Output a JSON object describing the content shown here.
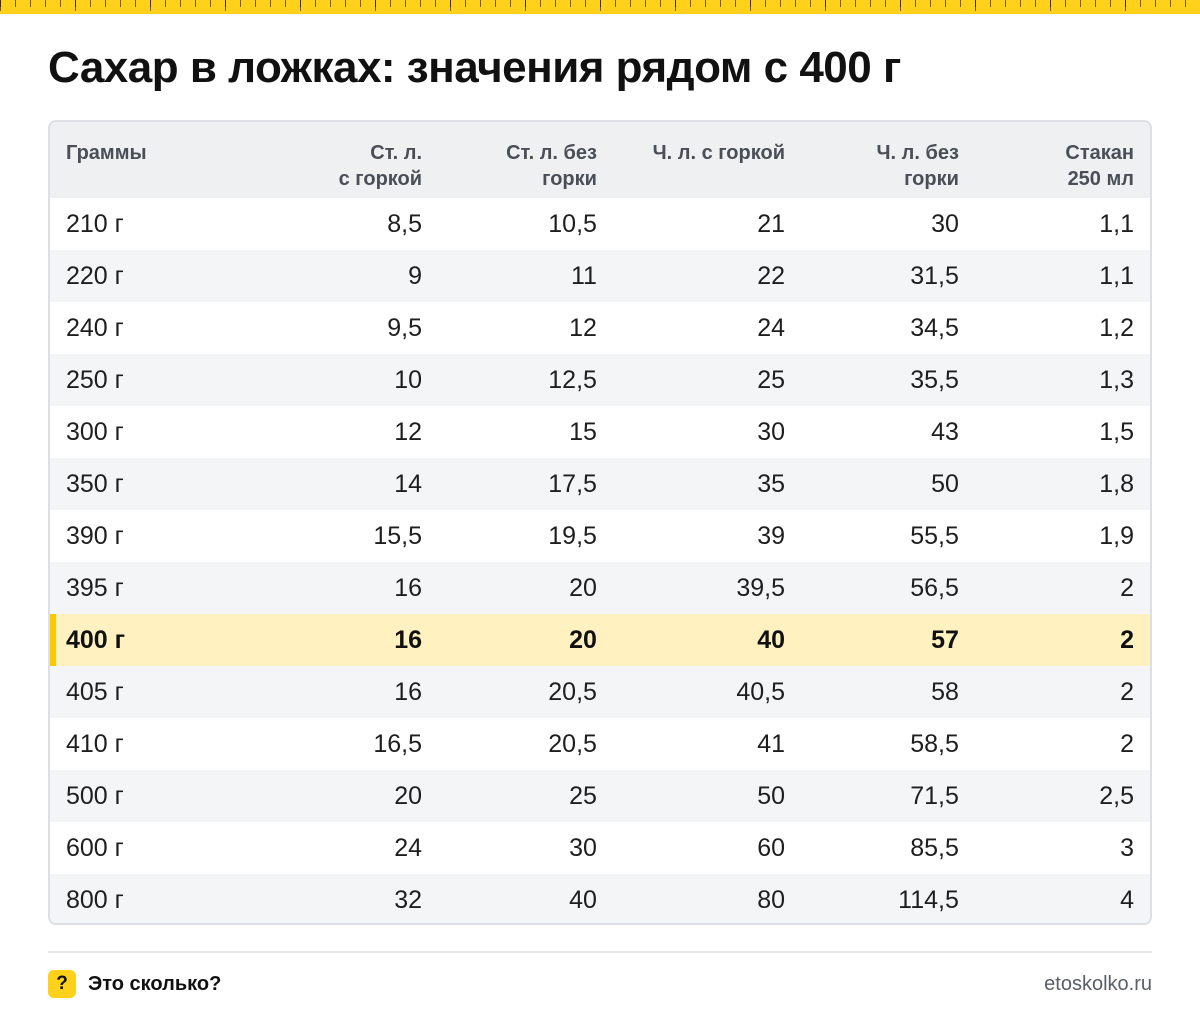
{
  "colors": {
    "accent": "#ffd11a",
    "highlight_row": "#fff2c0",
    "highlight_bar": "#ffc700",
    "header_bg": "#eef0f2"
  },
  "title": "Сахар в ложках: значения рядом с 400 г",
  "table": {
    "headers": [
      [
        "Граммы"
      ],
      [
        "Ст. л.",
        "с горкой"
      ],
      [
        "Ст. л. без",
        "горки"
      ],
      [
        "Ч. л. с горкой"
      ],
      [
        "Ч. л. без",
        "горки"
      ],
      [
        "Стакан",
        "250 мл"
      ]
    ],
    "highlight_index": 8,
    "rows": [
      [
        "210 г",
        "8,5",
        "10,5",
        "21",
        "30",
        "1,1"
      ],
      [
        "220 г",
        "9",
        "11",
        "22",
        "31,5",
        "1,1"
      ],
      [
        "240 г",
        "9,5",
        "12",
        "24",
        "34,5",
        "1,2"
      ],
      [
        "250 г",
        "10",
        "12,5",
        "25",
        "35,5",
        "1,3"
      ],
      [
        "300 г",
        "12",
        "15",
        "30",
        "43",
        "1,5"
      ],
      [
        "350 г",
        "14",
        "17,5",
        "35",
        "50",
        "1,8"
      ],
      [
        "390 г",
        "15,5",
        "19,5",
        "39",
        "55,5",
        "1,9"
      ],
      [
        "395 г",
        "16",
        "20",
        "39,5",
        "56,5",
        "2"
      ],
      [
        "400 г",
        "16",
        "20",
        "40",
        "57",
        "2"
      ],
      [
        "405 г",
        "16",
        "20,5",
        "40,5",
        "58",
        "2"
      ],
      [
        "410 г",
        "16,5",
        "20,5",
        "41",
        "58,5",
        "2"
      ],
      [
        "500 г",
        "20",
        "25",
        "50",
        "71,5",
        "2,5"
      ],
      [
        "600 г",
        "24",
        "30",
        "60",
        "85,5",
        "3"
      ],
      [
        "800 г",
        "32",
        "40",
        "80",
        "114,5",
        "4"
      ]
    ]
  },
  "footer": {
    "badge": "?",
    "badge_icon": "question-mark-icon",
    "brand": "Это сколько?",
    "site": "etoskolko.ru"
  }
}
